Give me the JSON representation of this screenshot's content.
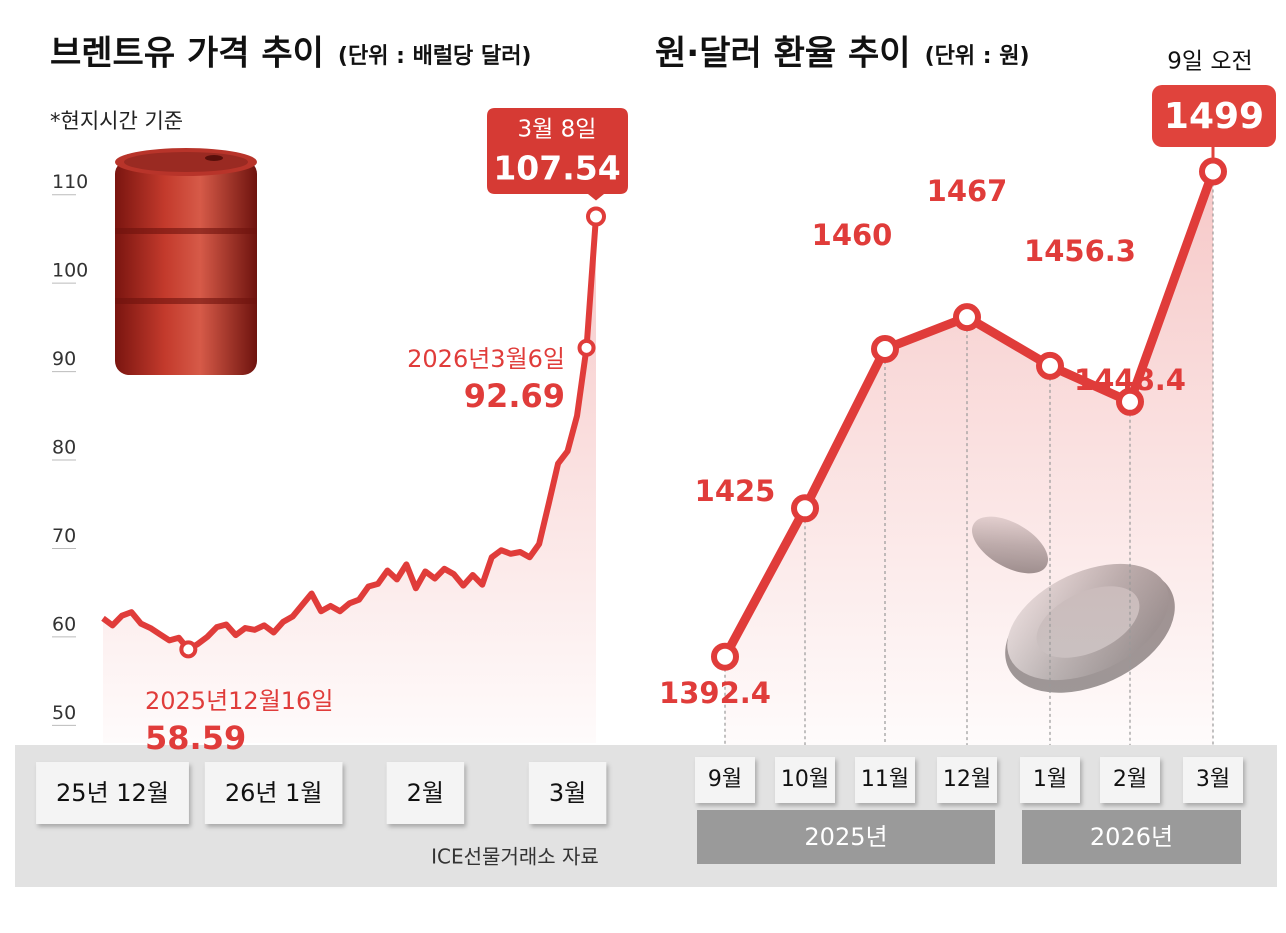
{
  "chart_data": [
    {
      "type": "line",
      "title": "브렌트유 가격 추이",
      "subtitle": "(단위 : 배럴당 달러)",
      "note": "*현지시간 기준",
      "source": "ICE선물거래소 자료",
      "categories": [
        null,
        "25년 12월",
        null,
        null,
        null,
        null,
        null,
        null,
        null,
        null,
        null,
        null,
        null,
        null,
        null,
        null,
        null,
        null,
        "26년 1월",
        null,
        null,
        null,
        null,
        null,
        null,
        null,
        null,
        null,
        null,
        null,
        null,
        null,
        null,
        null,
        "2월",
        null,
        null,
        null,
        null,
        null,
        null,
        null,
        null,
        null,
        null,
        null,
        null,
        null,
        null,
        "3월",
        null,
        null,
        null
      ],
      "values": [
        62.1,
        61.3,
        62.4,
        62.8,
        61.5,
        61.0,
        60.3,
        59.6,
        59.9,
        58.59,
        59.2,
        60.0,
        61.1,
        61.4,
        60.2,
        61.0,
        60.8,
        61.3,
        60.5,
        61.7,
        62.3,
        63.6,
        64.9,
        62.9,
        63.5,
        62.9,
        63.8,
        64.2,
        65.7,
        66.0,
        67.5,
        66.5,
        68.2,
        65.5,
        67.4,
        66.6,
        67.7,
        67.1,
        65.8,
        67.0,
        65.9,
        69.0,
        69.8,
        69.4,
        69.6,
        69.0,
        70.5,
        75.0,
        79.6,
        81.0,
        85.0,
        92.69,
        107.54
      ],
      "color": "#e03c3a",
      "ylim": [
        48,
        118
      ],
      "yticks": [
        50,
        60,
        70,
        80,
        90,
        100,
        110
      ],
      "annotations": [
        "2025년12월16일",
        "2026년3월6일",
        "3월 8일"
      ]
    },
    {
      "type": "line",
      "title": "원·달러 환율 추이",
      "subtitle": "(단위 : 원)",
      "categories": [
        "9월",
        "10월",
        "11월",
        "12월",
        "1월",
        "2월",
        "3월"
      ],
      "values": [
        1392.4,
        1425,
        1460,
        1467,
        1456.3,
        1448.4,
        1499
      ],
      "groups": [
        {
          "label": "2025년",
          "count": 4
        },
        {
          "label": "2026년",
          "count": 3
        }
      ],
      "color": "#e03c3a",
      "ylim": [
        1373,
        1518
      ],
      "annotations": [
        "9일 오전"
      ]
    }
  ]
}
